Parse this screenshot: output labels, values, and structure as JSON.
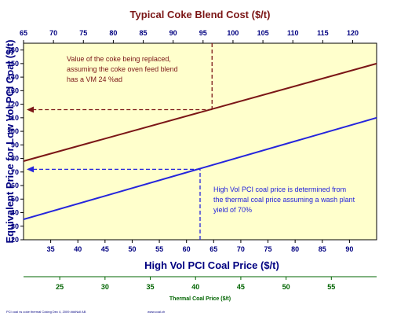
{
  "chart_data": {
    "type": "line",
    "title": "Typical Coke Blend Cost ($/t)",
    "xlabel": "High Vol PCI Coal Price ($/t)",
    "ylabel": "Equivalent Price for Low Vol PCI Coal ($/t)",
    "xlim": [
      30,
      95
    ],
    "ylim": [
      20,
      165
    ],
    "x_ticks": [
      "35",
      "40",
      "45",
      "50",
      "55",
      "60",
      "65",
      "70",
      "75",
      "80",
      "85",
      "90"
    ],
    "y_ticks": [
      "20",
      "30",
      "40",
      "50",
      "60",
      "70",
      "80",
      "90",
      "100",
      "110",
      "120",
      "130",
      "140",
      "150",
      "160"
    ],
    "top_axis": {
      "label": "Typical Coke Blend Cost ($/t)",
      "ticks": [
        "65",
        "70",
        "75",
        "80",
        "85",
        "90",
        "95",
        "100",
        "105",
        "110",
        "115",
        "120"
      ],
      "lim": [
        65,
        124
      ]
    },
    "bottom_axis2": {
      "label": "Thermal Coal Price ($/t)",
      "ticks": [
        "25",
        "30",
        "35",
        "40",
        "45",
        "50",
        "55"
      ],
      "lim": [
        21,
        60
      ]
    },
    "series": [
      {
        "color": "#7b1616",
        "x": [
          30,
          95
        ],
        "y": [
          78,
          150
        ]
      },
      {
        "color": "#2424dc",
        "x": [
          30,
          95
        ],
        "y": [
          35,
          110
        ]
      }
    ],
    "annotations": [
      {
        "lines": [
          "Value of the coke being replaced,",
          "assuming the coke oven feed blend",
          "has a VM 24 %ad"
        ],
        "color": "#7b1616",
        "arrow": {
          "top_x": 96.5,
          "y": 116
        }
      },
      {
        "lines": [
          "High Vol PCI coal price is determined from",
          "the thermal coal price assuming a wash plant",
          "yield of 70%"
        ],
        "color": "#2424dc",
        "arrow": {
          "bottom_x": 40.5,
          "y": 72
        }
      }
    ],
    "grid": false,
    "legend": "none"
  },
  "footer": {
    "left": "PCI coal vs coke thermal Coking  Dec 4, 2009  ###Null AB",
    "center": "www.coal.ch"
  },
  "colors": {
    "plot_bg": "#ffffcc",
    "title": "#7b1616",
    "axis_blue": "#000080",
    "axis_green": "#006400"
  }
}
